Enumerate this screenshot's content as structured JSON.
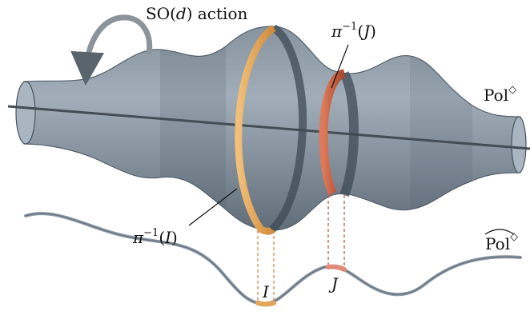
{
  "labels": {
    "so_action": {
      "prefix": "SO(",
      "var": "d",
      "suffix": ") action"
    },
    "pol": {
      "text": "Pol",
      "sup": "◇"
    },
    "pol_quotient": {
      "text": "Pol",
      "sup": "◇"
    },
    "preimage_i": {
      "pi": "π",
      "sup": "−1",
      "open": "(",
      "var": "I",
      "close": ")"
    },
    "preimage_j": {
      "pi": "π",
      "sup": "−1",
      "open": "(",
      "var": "J",
      "close": ")"
    },
    "interval_i": "I",
    "interval_j": "J"
  },
  "colors": {
    "surface": "#6f7f8d",
    "surface_dark": "#3f4c58",
    "axis": "#444c54",
    "curve": "#8a96a2",
    "ring_i": "#e3a559",
    "ring_j": "#c55a3a",
    "dashed_i": "#c9833f",
    "dashed_j": "#b4583e"
  }
}
